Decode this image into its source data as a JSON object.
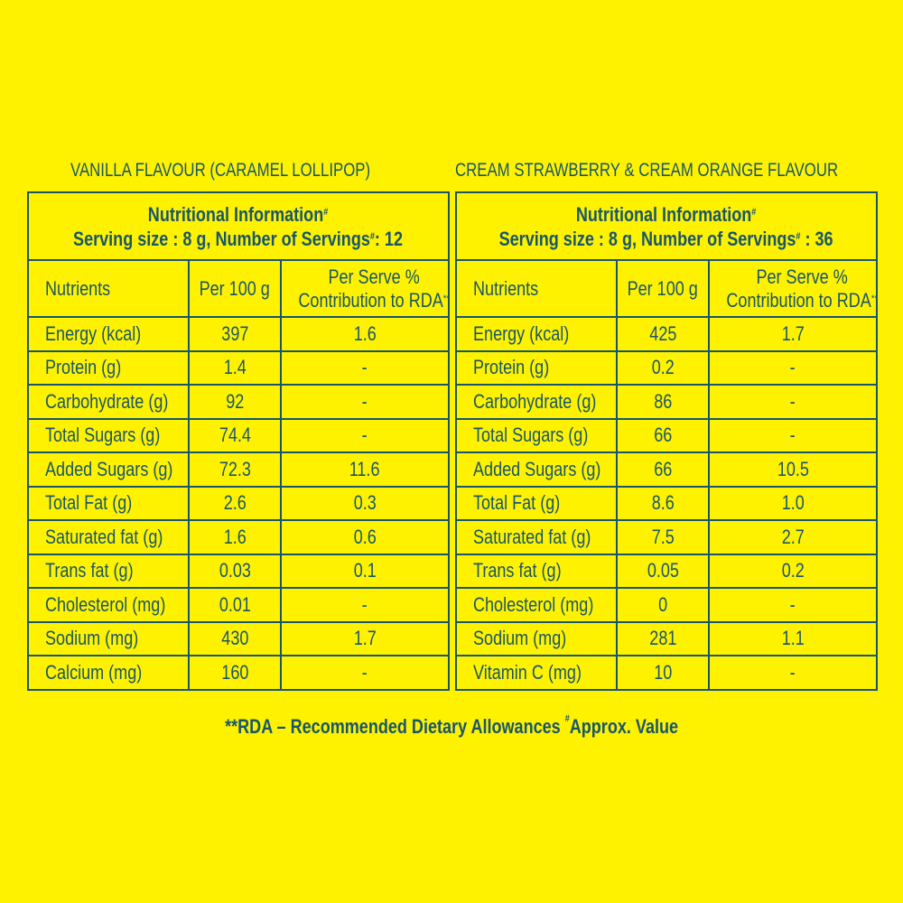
{
  "colors": {
    "background": "#fff200",
    "text": "#17566b"
  },
  "tables": [
    {
      "title": "VANILLA FLAVOUR (CARAMEL LOLLIPOP)",
      "heading": "Nutritional Information",
      "heading_mark": "#",
      "serving_prefix": "Serving size : 8 g, Number of Servings",
      "serving_mark": "#",
      "serving_suffix": ": 12",
      "col_nutrients": "Nutrients",
      "col_per100": "Per 100 g",
      "col_rda_1": "Per Serve %",
      "col_rda_2": "Contribution to RDA",
      "col_rda_mark": "**",
      "rows": [
        {
          "n": "Energy (kcal)",
          "v": "397",
          "r": "1.6"
        },
        {
          "n": "Protein (g)",
          "v": "1.4",
          "r": "-"
        },
        {
          "n": "Carbohydrate (g)",
          "v": "92",
          "r": "-"
        },
        {
          "n": "Total Sugars (g)",
          "v": "74.4",
          "r": "-"
        },
        {
          "n": "Added Sugars (g)",
          "v": "72.3",
          "r": "11.6"
        },
        {
          "n": "Total Fat (g)",
          "v": "2.6",
          "r": "0.3"
        },
        {
          "n": "Saturated fat (g)",
          "v": "1.6",
          "r": "0.6"
        },
        {
          "n": "Trans fat (g)",
          "v": "0.03",
          "r": "0.1"
        },
        {
          "n": "Cholesterol (mg)",
          "v": "0.01",
          "r": "-"
        },
        {
          "n": "Sodium (mg)",
          "v": "430",
          "r": "1.7"
        },
        {
          "n": "Calcium (mg)",
          "v": "160",
          "r": "-"
        }
      ]
    },
    {
      "title": "CREAM STRAWBERRY & CREAM ORANGE FLAVOUR",
      "heading": "Nutritional Information",
      "heading_mark": "#",
      "serving_prefix": "Serving size : 8 g, Number of Servings",
      "serving_mark": "#",
      "serving_suffix": " : 36",
      "col_nutrients": "Nutrients",
      "col_per100": "Per 100 g",
      "col_rda_1": "Per Serve %",
      "col_rda_2": "Contribution to RDA",
      "col_rda_mark": "**",
      "rows": [
        {
          "n": "Energy (kcal)",
          "v": "425",
          "r": "1.7"
        },
        {
          "n": "Protein (g)",
          "v": "0.2",
          "r": "-"
        },
        {
          "n": "Carbohydrate (g)",
          "v": "86",
          "r": "-"
        },
        {
          "n": "Total Sugars (g)",
          "v": "66",
          "r": "-"
        },
        {
          "n": "Added Sugars (g)",
          "v": "66",
          "r": "10.5"
        },
        {
          "n": "Total Fat (g)",
          "v": "8.6",
          "r": "1.0"
        },
        {
          "n": "Saturated fat (g)",
          "v": "7.5",
          "r": "2.7"
        },
        {
          "n": "Trans fat (g)",
          "v": "0.05",
          "r": "0.2"
        },
        {
          "n": "Cholesterol (mg)",
          "v": "0",
          "r": "-"
        },
        {
          "n": "Sodium (mg)",
          "v": "281",
          "r": "1.1"
        },
        {
          "n": "Vitamin C (mg)",
          "v": "10",
          "r": "-"
        }
      ]
    }
  ],
  "footnote": {
    "part1": "**RDA – Recommended Dietary Allowances ",
    "mark": "#",
    "part2": "Approx. Value"
  }
}
